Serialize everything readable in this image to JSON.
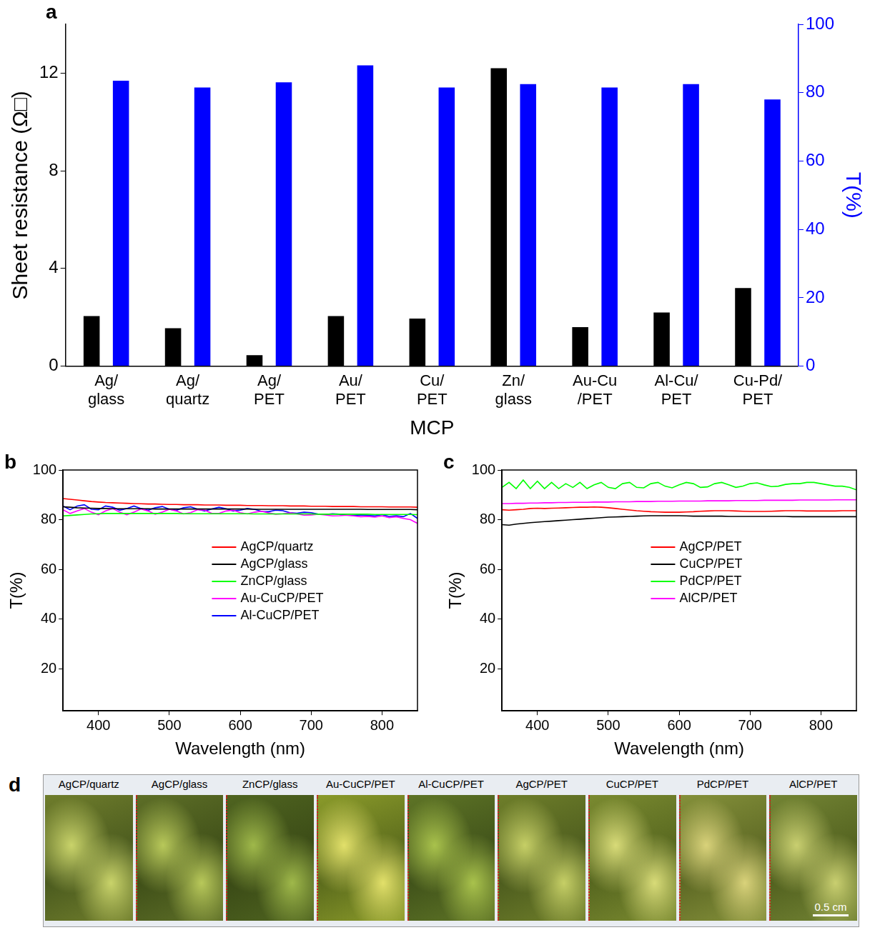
{
  "chart_data": [
    {
      "panel_label": "a",
      "type": "bar",
      "categories": [
        [
          "Ag/",
          "glass"
        ],
        [
          "Ag/",
          "quartz"
        ],
        [
          "Ag/",
          "PET"
        ],
        [
          "Au/",
          "PET"
        ],
        [
          "Cu/",
          "PET"
        ],
        [
          "Zn/",
          "glass"
        ],
        [
          "Au-Cu",
          "/PET"
        ],
        [
          "Al-Cu/",
          "PET"
        ],
        [
          "Cu-Pd/",
          "PET"
        ]
      ],
      "x_label": "MCP",
      "y_label": "Sheet resistance (Ω□)",
      "y2_label": "T(%)",
      "ylim": [
        0,
        14
      ],
      "yticks": [
        0,
        4,
        8,
        12
      ],
      "y2lim": [
        0,
        100
      ],
      "y2ticks": [
        0,
        20,
        40,
        60,
        80,
        100
      ],
      "grid": false,
      "series": [
        {
          "color": "#000000",
          "values": [
            2.05,
            1.55,
            0.45,
            2.05,
            1.95,
            12.2,
            1.6,
            2.2,
            3.2
          ]
        },
        {
          "color": "#0000ff",
          "axis": "y2",
          "values": [
            83.5,
            81.5,
            83,
            88,
            81.5,
            82.5,
            81.5,
            82.5,
            78
          ]
        }
      ]
    },
    {
      "panel_label": "b",
      "type": "line",
      "x_label": "Wavelength (nm)",
      "y_label": "T(%)",
      "xlim": [
        350,
        850
      ],
      "xticks": [
        400,
        500,
        600,
        700,
        800
      ],
      "ylim": [
        3,
        100
      ],
      "yticks": [
        20,
        40,
        60,
        80,
        100
      ],
      "grid": false,
      "legend": "center",
      "x": [
        350,
        360,
        370,
        380,
        390,
        400,
        410,
        420,
        430,
        440,
        450,
        460,
        470,
        480,
        490,
        500,
        510,
        520,
        530,
        540,
        550,
        560,
        570,
        580,
        590,
        600,
        610,
        620,
        630,
        640,
        650,
        660,
        670,
        680,
        690,
        700,
        710,
        720,
        730,
        740,
        750,
        760,
        770,
        780,
        790,
        800,
        810,
        820,
        830,
        840,
        850
      ],
      "series": [
        {
          "name": "AgCP/quartz",
          "color": "#ff0000",
          "values": [
            88.5,
            88.2,
            87.9,
            87.6,
            87.3,
            87.1,
            86.9,
            86.8,
            86.7,
            86.6,
            86.5,
            86.4,
            86.3,
            86.3,
            86.2,
            86.1,
            86.1,
            86.0,
            86.0,
            86.0,
            85.9,
            85.9,
            85.9,
            85.8,
            85.8,
            85.8,
            85.7,
            85.7,
            85.7,
            85.6,
            85.6,
            85.6,
            85.5,
            85.5,
            85.5,
            85.4,
            85.4,
            85.4,
            85.3,
            85.3,
            85.3,
            85.3,
            85.2,
            85.2,
            85.2,
            85.2,
            85.1,
            85.1,
            85.1,
            85.1,
            85.0
          ]
        },
        {
          "name": "AgCP/glass",
          "color": "#000000",
          "values": [
            85.2,
            85.0,
            84.8,
            84.7,
            84.6,
            84.5,
            84.5,
            84.4,
            84.4,
            84.4,
            84.4,
            84.4,
            84.4,
            84.3,
            84.3,
            84.3,
            84.3,
            84.3,
            84.3,
            84.3,
            84.3,
            84.3,
            84.3,
            84.3,
            84.3,
            84.3,
            84.3,
            84.2,
            84.2,
            84.2,
            84.2,
            84.2,
            84.2,
            84.2,
            84.2,
            84.2,
            84.2,
            84.2,
            84.2,
            84.2,
            84.2,
            84.2,
            84.2,
            84.1,
            84.1,
            84.1,
            84.1,
            84.1,
            84.1,
            84.1,
            84.0
          ]
        },
        {
          "name": "ZnCP/glass",
          "color": "#00ff00",
          "values": [
            81.5,
            81.7,
            81.9,
            82.1,
            82.3,
            82.4,
            82.5,
            82.5,
            82.5,
            82.5,
            82.5,
            82.5,
            82.5,
            82.5,
            82.5,
            82.5,
            82.5,
            82.4,
            82.4,
            82.4,
            82.4,
            82.4,
            82.4,
            82.4,
            82.4,
            82.4,
            82.4,
            82.3,
            82.3,
            82.3,
            82.3,
            82.3,
            82.3,
            82.3,
            82.3,
            82.3,
            82.2,
            82.2,
            82.2,
            82.2,
            82.2,
            82.2,
            82.2,
            82.2,
            82.1,
            82.1,
            82.1,
            82.1,
            82.1,
            82.1,
            82.0
          ]
        },
        {
          "name": "Au-CuCP/PET",
          "color": "#ff00ff",
          "values": [
            84,
            82.5,
            83.5,
            84.5,
            83,
            82,
            83.5,
            84.5,
            83,
            82,
            83,
            84.3,
            83.5,
            82.2,
            83,
            84.2,
            83.5,
            82.3,
            82.8,
            84,
            83.8,
            82.5,
            82.5,
            83.5,
            83.8,
            82.8,
            82.3,
            83,
            83.4,
            82.7,
            82.2,
            82.4,
            82.7,
            82.3,
            81.8,
            81.9,
            82.2,
            81.9,
            81.5,
            81.6,
            81.8,
            81.5,
            81.2,
            81.3,
            81,
            81.5,
            80.8,
            81.2,
            80.5,
            80,
            78.5
          ]
        },
        {
          "name": "Al-CuCP/PET",
          "color": "#0000ff",
          "values": [
            85.5,
            84,
            85.5,
            86,
            84.2,
            84,
            85.5,
            85,
            83.8,
            84.5,
            85.5,
            84.5,
            83.8,
            84.8,
            85.3,
            84.2,
            83.8,
            84.8,
            85.2,
            84.2,
            83.5,
            84.3,
            85,
            84.4,
            83.5,
            83.8,
            84.5,
            84.2,
            83.3,
            83.2,
            83.8,
            83.6,
            82.8,
            82.6,
            83,
            82.8,
            82.2,
            82.1,
            82.4,
            82.2,
            81.8,
            81.7,
            81.9,
            81.7,
            81.5,
            82,
            81.3,
            81.6,
            81.2,
            82.5,
            80.5
          ]
        }
      ]
    },
    {
      "panel_label": "c",
      "type": "line",
      "x_label": "Wavelength (nm)",
      "y_label": "T(%)",
      "xlim": [
        350,
        850
      ],
      "xticks": [
        400,
        500,
        600,
        700,
        800
      ],
      "ylim": [
        3,
        100
      ],
      "yticks": [
        20,
        40,
        60,
        80,
        100
      ],
      "grid": false,
      "legend": "center",
      "x": [
        350,
        360,
        370,
        380,
        390,
        400,
        410,
        420,
        430,
        440,
        450,
        460,
        470,
        480,
        490,
        500,
        510,
        520,
        530,
        540,
        550,
        560,
        570,
        580,
        590,
        600,
        610,
        620,
        630,
        640,
        650,
        660,
        670,
        680,
        690,
        700,
        710,
        720,
        730,
        740,
        750,
        760,
        770,
        780,
        790,
        800,
        810,
        820,
        830,
        840,
        850
      ],
      "series": [
        {
          "name": "AgCP/PET",
          "color": "#ff0000",
          "values": [
            84,
            83.8,
            84,
            84.2,
            84.5,
            84.6,
            84.5,
            84.6,
            84.7,
            84.8,
            84.9,
            85,
            85,
            85.1,
            85,
            84.8,
            84.5,
            84.2,
            83.9,
            83.6,
            83.4,
            83.2,
            83.1,
            83,
            83,
            83,
            83.1,
            83.2,
            83.4,
            83.5,
            83.6,
            83.6,
            83.6,
            83.5,
            83.4,
            83.3,
            83.3,
            83.3,
            83.4,
            83.5,
            83.6,
            83.6,
            83.6,
            83.5,
            83.5,
            83.5,
            83.5,
            83.5,
            83.6,
            83.6,
            83.6
          ]
        },
        {
          "name": "CuCP/PET",
          "color": "#000000",
          "values": [
            78,
            77.8,
            78.2,
            78.5,
            78.8,
            79,
            79.2,
            79.4,
            79.6,
            79.8,
            80,
            80.2,
            80.4,
            80.6,
            80.8,
            81,
            81.1,
            81.2,
            81.3,
            81.4,
            81.5,
            81.6,
            81.6,
            81.6,
            81.6,
            81.6,
            81.5,
            81.4,
            81.4,
            81.4,
            81.4,
            81.4,
            81.3,
            81.3,
            81.3,
            81.3,
            81.3,
            81.3,
            81.3,
            81.3,
            81.3,
            81.2,
            81.2,
            81.2,
            81.2,
            81.2,
            81.2,
            81.2,
            81.2,
            81.2,
            81.2
          ]
        },
        {
          "name": "PdCP/PET",
          "color": "#00ff00",
          "values": [
            93,
            95,
            92.5,
            96,
            92.5,
            95.5,
            92.5,
            95,
            92.5,
            94.5,
            93,
            95,
            92.5,
            94,
            95,
            93,
            92.5,
            94.5,
            95,
            93,
            92.8,
            94.5,
            95,
            93.5,
            92.8,
            94,
            95,
            94.5,
            93,
            93.2,
            94.5,
            95,
            94,
            93,
            93.5,
            94.5,
            94.8,
            94,
            93.3,
            93.5,
            94.2,
            94.5,
            94.5,
            95,
            95,
            94.5,
            94,
            93.5,
            93.5,
            93,
            92
          ]
        },
        {
          "name": "AlCP/PET",
          "color": "#ff00ff",
          "values": [
            86.5,
            86.5,
            86.6,
            86.6,
            86.7,
            86.7,
            86.8,
            86.8,
            86.9,
            86.9,
            87,
            87,
            87,
            87.1,
            87.1,
            87.1,
            87.2,
            87.2,
            87.2,
            87.3,
            87.3,
            87.3,
            87.4,
            87.4,
            87.4,
            87.5,
            87.5,
            87.5,
            87.5,
            87.6,
            87.6,
            87.6,
            87.6,
            87.7,
            87.7,
            87.7,
            87.7,
            87.8,
            87.8,
            87.8,
            87.8,
            87.8,
            87.9,
            87.9,
            87.9,
            87.9,
            87.9,
            88,
            88,
            88,
            88
          ]
        }
      ]
    }
  ],
  "photo_panel": {
    "panel_label": "d",
    "labels": [
      "AgCP/quartz",
      "AgCP/glass",
      "ZnCP/glass",
      "Au-CuCP/PET",
      "Al-CuCP/PET",
      "AgCP/PET",
      "CuCP/PET",
      "PdCP/PET",
      "AlCP/PET"
    ],
    "scale_bar": "0.5 cm"
  }
}
